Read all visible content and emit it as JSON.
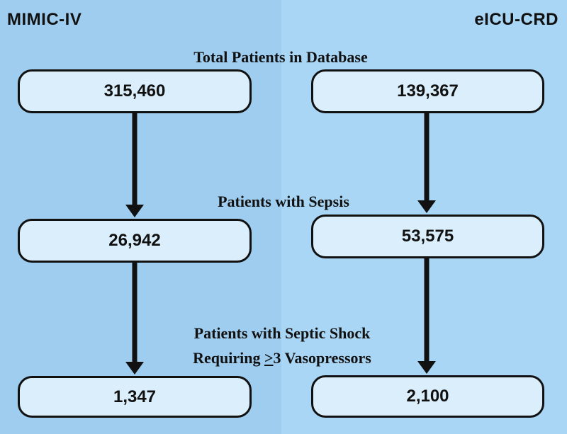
{
  "databases": {
    "left": "MIMIC-IV",
    "right": "eICU-CRD"
  },
  "stages": {
    "total": "Total Patients in Database",
    "sepsis": "Patients with Sepsis",
    "shock_line1": "Patients with Septic Shock",
    "shock_line2_prefix": "Requiring ",
    "shock_line2_ge": ">",
    "shock_line2_suffix": "3 Vasopressors"
  },
  "counts": {
    "mimic": {
      "total": "315,460",
      "sepsis": "26,942",
      "shock": "1,347"
    },
    "eicu": {
      "total": "139,367",
      "sepsis": "53,575",
      "shock": "2,100"
    }
  },
  "colors": {
    "left_panel": "#9fcdef",
    "right_panel": "#a9d6f5",
    "box_fill": "#dbeefb",
    "outline": "#111111"
  }
}
